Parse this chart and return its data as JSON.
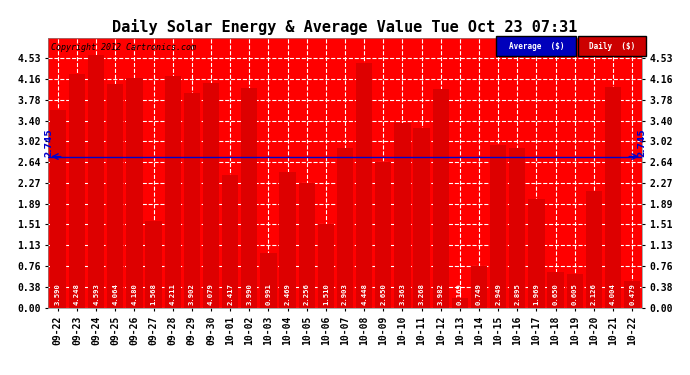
{
  "title": "Daily Solar Energy & Average Value Tue Oct 23 07:31",
  "copyright": "Copyright 2012 Cartronics.com",
  "average_value": 2.745,
  "categories": [
    "09-22",
    "09-23",
    "09-24",
    "09-25",
    "09-26",
    "09-27",
    "09-28",
    "09-29",
    "09-30",
    "10-01",
    "10-02",
    "10-03",
    "10-04",
    "10-05",
    "10-06",
    "10-07",
    "10-08",
    "10-09",
    "10-10",
    "10-11",
    "10-12",
    "10-13",
    "10-14",
    "10-15",
    "10-16",
    "10-17",
    "10-18",
    "10-19",
    "10-20",
    "10-21",
    "10-22"
  ],
  "values": [
    3.59,
    4.248,
    4.593,
    4.064,
    4.18,
    1.568,
    4.211,
    3.902,
    4.079,
    2.417,
    3.99,
    0.991,
    2.469,
    2.256,
    1.51,
    2.903,
    4.448,
    2.65,
    3.363,
    3.268,
    3.982,
    0.169,
    0.749,
    2.949,
    2.895,
    1.969,
    0.65,
    0.605,
    2.126,
    4.004,
    0.479
  ],
  "bar_color": "#dd0000",
  "avg_line_color": "#0000cc",
  "background_color": "#ffffff",
  "plot_bg_color": "#ff0000",
  "grid_color": "#ffffff",
  "ylim": [
    0.0,
    4.91
  ],
  "yticks": [
    0.0,
    0.38,
    0.76,
    1.13,
    1.51,
    1.89,
    2.27,
    2.64,
    3.02,
    3.4,
    3.78,
    4.16,
    4.53
  ],
  "title_fontsize": 11,
  "bar_label_fontsize": 5.2,
  "tick_fontsize": 7,
  "legend_avg_color": "#0000bb",
  "legend_daily_color": "#cc0000",
  "avg_label": "Average  ($)",
  "daily_label": "Daily  ($)"
}
